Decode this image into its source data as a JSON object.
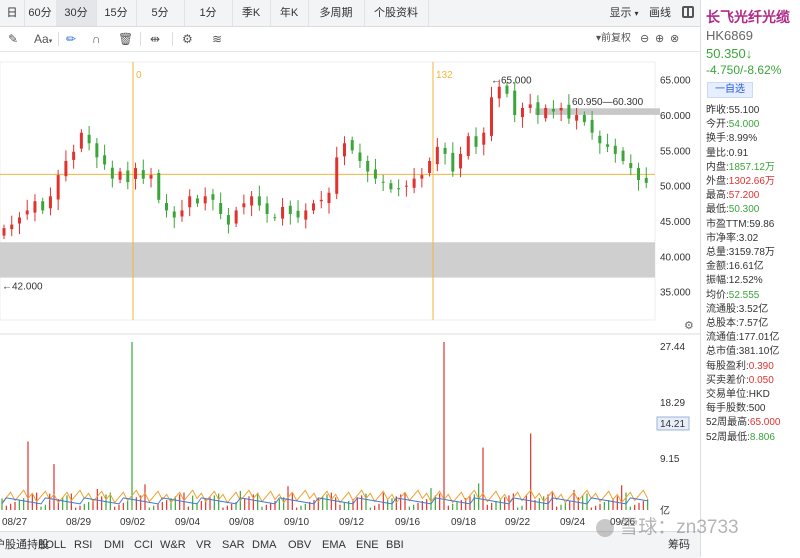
{
  "topbar": {
    "periods": [
      "日",
      "60分",
      "30分",
      "15分",
      "5分",
      "1分",
      "季K",
      "年K",
      "多周期",
      "个股资料"
    ],
    "active_period": "30分",
    "show_label": "显示",
    "draw_label": "画线"
  },
  "toolbar": {
    "font_label": "Aa",
    "fuquan_label": "前复权"
  },
  "colors": {
    "up": "#e0322f",
    "down": "#3aa63a",
    "marker": "#f0b63c",
    "ma": "#f0a030"
  },
  "chart_data": {
    "type": "candlestick",
    "price_axis_ticks": [
      "65.000",
      "60.000",
      "55.000",
      "50.000",
      "45.000",
      "40.000",
      "35.000"
    ],
    "price_range": [
      31,
      67.5
    ],
    "x_labels": [
      "08/27",
      "08/29",
      "09/02",
      "09/04",
      "09/08",
      "09/10",
      "09/12",
      "09/16",
      "09/18",
      "09/22",
      "09/24",
      "09/26"
    ],
    "annotations": {
      "high_label": "←65.000",
      "range_label": "60.950—60.300",
      "low_label": "←42.000",
      "marker_left": "0",
      "marker_right": "132"
    },
    "close_series": [
      44,
      44.5,
      45.5,
      46.5,
      47.8,
      46.5,
      48.5,
      51.5,
      53.5,
      54.8,
      57.5,
      56,
      54,
      53,
      51,
      52,
      50.5,
      52.5,
      51,
      51.5,
      48,
      46.5,
      45.5,
      46.5,
      48.5,
      47.5,
      48.5,
      48,
      46,
      44.5,
      46.5,
      47.5,
      48.5,
      47.2,
      46,
      45.5,
      47,
      46,
      45.5,
      46.5,
      47.5,
      48,
      49,
      54,
      56,
      55,
      53.5,
      52,
      51,
      50.5,
      49.5,
      49.5,
      50,
      51,
      51.5,
      53.5,
      55.5,
      54.5,
      52,
      54.5,
      57,
      55.5,
      57.5,
      62.5,
      64,
      63,
      60,
      61,
      61.5,
      60,
      61,
      60.5,
      61,
      59.5,
      60,
      59,
      57.5,
      56,
      55.5,
      54.5,
      53.5,
      52.5,
      50.8,
      50.4
    ],
    "volume_axis_ticks": [
      "27.44",
      "18.29",
      "9.15",
      "亿"
    ],
    "volume_current": "14.21",
    "volume_range": [
      0,
      27.44
    ],
    "volume_spikes": [
      {
        "index": 30,
        "value": 27.44
      },
      {
        "index": 102,
        "value": 27.44
      },
      {
        "index": 111,
        "value": 10.2
      },
      {
        "index": 122,
        "value": 12.5
      },
      {
        "index": 6,
        "value": 11.2
      },
      {
        "index": 12,
        "value": 7.5
      }
    ]
  },
  "indicators": [
    "沪股通持股",
    "BOLL",
    "RSI",
    "DMI",
    "CCI",
    "W&R",
    "VR",
    "SAR",
    "DMA",
    "OBV",
    "EMA",
    "ENE",
    "BBI"
  ],
  "indicator_right": "筹码",
  "stock": {
    "name": "长飞光纤光缆",
    "code": "HK6869",
    "price": "50.350↓",
    "change": "-4.750/-8.62%",
    "watch_label": "一自选"
  },
  "stats": [
    {
      "label": "昨收:",
      "value": "55.100",
      "color": "dark"
    },
    {
      "label": "今开:",
      "value": "54.000",
      "color": "green"
    },
    {
      "label": "换手:",
      "value": "8.99%",
      "color": "dark"
    },
    {
      "label": "量比:",
      "value": "0.91",
      "color": "dark"
    },
    {
      "label": "内盘:",
      "value": "1857.12万",
      "color": "green"
    },
    {
      "label": "外盘:",
      "value": "1302.66万",
      "color": "red"
    },
    {
      "label": "最高:",
      "value": "57.200",
      "color": "red"
    },
    {
      "label": "最低:",
      "value": "50.300",
      "color": "green"
    },
    {
      "label": "市盈TTM:",
      "value": "59.86",
      "color": "dark"
    },
    {
      "label": "市净率:",
      "value": "3.02",
      "color": "dark"
    },
    {
      "label": "总量:",
      "value": "3159.78万",
      "color": "dark"
    },
    {
      "label": "金额:",
      "value": "16.61亿",
      "color": "dark"
    },
    {
      "label": "振幅:",
      "value": "12.52%",
      "color": "dark"
    },
    {
      "label": "均价:",
      "value": "52.555",
      "color": "green"
    },
    {
      "label": "流通股:",
      "value": "3.52亿",
      "color": "dark"
    },
    {
      "label": "总股本:",
      "value": "7.57亿",
      "color": "dark"
    },
    {
      "label": "流通值:",
      "value": "177.01亿",
      "color": "dark"
    },
    {
      "label": "总市值:",
      "value": "381.10亿",
      "color": "dark"
    },
    {
      "label": "每股盈利:",
      "value": "0.390",
      "color": "red"
    },
    {
      "label": "买卖差价:",
      "value": "0.050",
      "color": "red"
    },
    {
      "label": "交易单位:",
      "value": "HKD",
      "color": "dark"
    },
    {
      "label": "每手股数:",
      "value": "500",
      "color": "dark"
    },
    {
      "label": "52周最高:",
      "value": "65.000",
      "color": "red"
    },
    {
      "label": "52周最低:",
      "value": "8.806",
      "color": "green"
    }
  ],
  "watermark": "雪球：zn3733"
}
